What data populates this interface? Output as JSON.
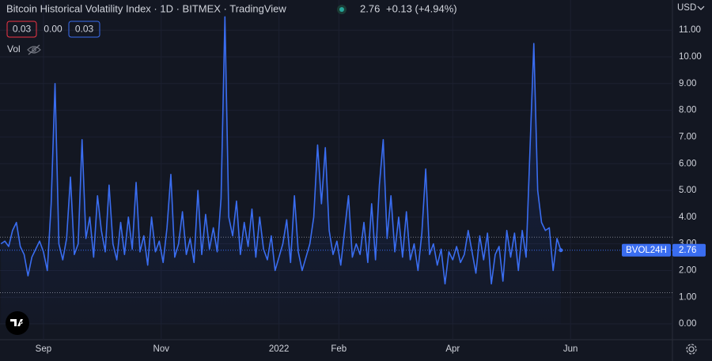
{
  "chart_data": {
    "type": "line",
    "title": "Bitcoin Historical Volatility Index · 1D · BITMEX · TradingView",
    "price": "2.76",
    "change": "+0.13 (+4.94%)",
    "indicator_values": [
      "0.03",
      "0.00",
      "0.03"
    ],
    "volume_label": "Vol",
    "currency": "USD",
    "symbol": "BVOL24H",
    "last_value_label": "2.76",
    "x": [
      -22,
      -20,
      -18,
      -16,
      -14,
      -12,
      -10,
      -8,
      -6,
      -4,
      -2,
      0,
      2,
      4,
      6,
      8,
      10,
      12,
      14,
      16,
      18,
      20,
      22,
      24,
      26,
      28,
      30,
      32,
      34,
      36,
      38,
      40,
      42,
      44,
      46,
      48,
      50,
      52,
      54,
      56,
      58,
      60,
      62,
      64,
      66,
      68,
      70,
      72,
      74,
      76,
      78,
      80,
      82,
      84,
      86,
      88,
      90,
      92,
      94,
      96,
      98,
      100,
      102,
      104,
      106,
      108,
      110,
      112,
      114,
      116,
      118,
      120,
      122,
      124,
      126,
      128,
      130,
      132,
      134,
      136,
      138,
      140,
      142,
      144,
      146,
      148,
      150,
      152,
      154,
      156,
      158,
      160,
      162,
      164,
      166,
      168,
      170,
      172,
      174,
      176,
      178,
      180,
      182,
      184,
      186,
      188,
      190,
      192,
      194,
      196,
      198,
      200,
      202,
      204,
      206,
      208,
      210,
      212,
      214,
      216,
      218,
      220,
      222,
      224,
      226,
      228,
      230,
      232,
      234,
      236,
      238,
      240,
      242,
      244,
      246,
      248,
      250,
      252,
      254,
      256,
      258,
      260,
      262,
      264,
      266,
      268
    ],
    "series": [
      {
        "name": "BVOL24H",
        "color": "#3a6df0",
        "values": [
          3.0,
          3.1,
          2.9,
          3.5,
          3.8,
          2.9,
          2.6,
          1.8,
          2.5,
          2.8,
          3.1,
          2.7,
          2.0,
          4.5,
          9.0,
          3.0,
          2.4,
          3.2,
          5.5,
          2.6,
          3.0,
          6.9,
          3.2,
          4.0,
          2.5,
          4.8,
          3.5,
          2.7,
          5.2,
          3.0,
          2.4,
          3.8,
          2.6,
          4.0,
          2.8,
          5.3,
          2.7,
          3.3,
          2.2,
          4.0,
          2.7,
          3.1,
          2.3,
          3.6,
          5.6,
          2.5,
          3.0,
          4.2,
          2.6,
          3.2,
          2.3,
          5.0,
          2.6,
          4.1,
          2.8,
          3.6,
          2.7,
          4.7,
          11.5,
          4.0,
          3.3,
          4.6,
          2.6,
          3.8,
          2.9,
          4.3,
          2.5,
          4.0,
          2.8,
          2.4,
          3.3,
          2.0,
          2.5,
          3.0,
          3.9,
          2.3,
          4.8,
          2.7,
          2.0,
          2.5,
          3.0,
          4.0,
          6.7,
          4.5,
          6.6,
          3.5,
          2.6,
          3.1,
          2.2,
          3.5,
          4.8,
          2.5,
          3.0,
          2.6,
          3.8,
          2.3,
          4.5,
          2.4,
          5.2,
          6.9,
          3.2,
          4.8,
          2.7,
          4.0,
          2.5,
          4.2,
          2.4,
          3.0,
          2.0,
          3.4,
          5.8,
          2.6,
          3.0,
          2.2,
          2.8,
          1.5,
          2.7,
          2.4,
          2.9,
          2.3,
          2.6,
          3.5,
          2.7,
          1.9,
          3.3,
          2.4,
          3.4,
          1.5,
          2.6,
          2.9,
          1.6,
          3.5,
          2.5,
          3.4,
          2.0,
          3.5,
          2.5,
          6.5,
          10.5,
          5.0,
          3.8,
          3.5,
          3.6,
          2.0,
          3.2,
          2.76
        ]
      }
    ],
    "xlim": [
      -22.5,
      325.8
    ],
    "ylim": [
      -0.59,
      12.13
    ],
    "xticks": [
      {
        "value": 0,
        "label": "Sep"
      },
      {
        "value": 61,
        "label": "Nov"
      },
      {
        "value": 122,
        "label": "2022"
      },
      {
        "value": 153,
        "label": "Feb"
      },
      {
        "value": 212,
        "label": "Apr"
      },
      {
        "value": 273,
        "label": "Jun"
      }
    ],
    "yticks": [
      {
        "value": 0,
        "label": "0.00"
      },
      {
        "value": 1,
        "label": "1.00"
      },
      {
        "value": 2,
        "label": "2.00"
      },
      {
        "value": 3,
        "label": "3.00"
      },
      {
        "value": 4,
        "label": "4.00"
      },
      {
        "value": 5,
        "label": "5.00"
      },
      {
        "value": 6,
        "label": "6.00"
      },
      {
        "value": 7,
        "label": "7.00"
      },
      {
        "value": 8,
        "label": "8.00"
      },
      {
        "value": 9,
        "label": "9.00"
      },
      {
        "value": 10,
        "label": "10.00"
      },
      {
        "value": 11,
        "label": "11.00"
      }
    ],
    "hlines": [
      3.25,
      1.17
    ],
    "grid": true
  }
}
